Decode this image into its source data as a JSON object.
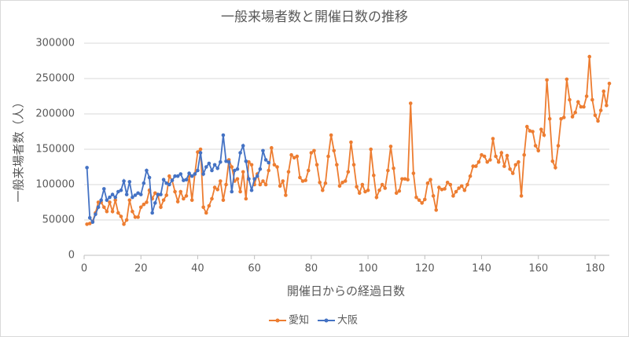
{
  "chart_data": {
    "type": "line",
    "title": "一般来場者数と開催日数の推移",
    "x_label": "開催日からの経過日数",
    "y_label": "一般来場者数（人）",
    "xlim": [
      0,
      185
    ],
    "xticks": [
      0,
      20,
      40,
      60,
      80,
      100,
      120,
      140,
      160,
      180
    ],
    "ylim": [
      0,
      300000
    ],
    "yticks": [
      0,
      50000,
      100000,
      150000,
      200000,
      250000,
      300000
    ],
    "grid": true,
    "legend": "bottom",
    "series": [
      {
        "name": "愛知",
        "color": "#ed7d31",
        "x": [
          1,
          2,
          3,
          4,
          5,
          6,
          7,
          8,
          9,
          10,
          11,
          12,
          13,
          14,
          15,
          16,
          17,
          18,
          19,
          20,
          21,
          22,
          23,
          24,
          25,
          26,
          27,
          28,
          29,
          30,
          31,
          32,
          33,
          34,
          35,
          36,
          37,
          38,
          39,
          40,
          41,
          42,
          43,
          44,
          45,
          46,
          47,
          48,
          49,
          50,
          51,
          52,
          53,
          54,
          55,
          56,
          57,
          58,
          59,
          60,
          61,
          62,
          63,
          64,
          65,
          66,
          67,
          68,
          69,
          70,
          71,
          72,
          73,
          74,
          75,
          76,
          77,
          78,
          79,
          80,
          81,
          82,
          83,
          84,
          85,
          86,
          87,
          88,
          89,
          90,
          91,
          92,
          93,
          94,
          95,
          96,
          97,
          98,
          99,
          100,
          101,
          102,
          103,
          104,
          105,
          106,
          107,
          108,
          109,
          110,
          111,
          112,
          113,
          114,
          115,
          116,
          117,
          118,
          119,
          120,
          121,
          122,
          123,
          124,
          125,
          126,
          127,
          128,
          129,
          130,
          131,
          132,
          133,
          134,
          135,
          136,
          137,
          138,
          139,
          140,
          141,
          142,
          143,
          144,
          145,
          146,
          147,
          148,
          149,
          150,
          151,
          152,
          153,
          154,
          155,
          156,
          157,
          158,
          159,
          160,
          161,
          162,
          163,
          164,
          165,
          166,
          167,
          168,
          169,
          170,
          171,
          172,
          173,
          174,
          175,
          176,
          177,
          178,
          179,
          180,
          181,
          182,
          183,
          184,
          185
        ],
        "values": [
          44000,
          45000,
          48000,
          60000,
          75000,
          75000,
          68000,
          62000,
          75000,
          62000,
          78000,
          60000,
          55000,
          44000,
          50000,
          78000,
          62000,
          54000,
          54000,
          68000,
          72000,
          75000,
          92000,
          80000,
          88000,
          85000,
          68000,
          78000,
          85000,
          112000,
          106000,
          90000,
          76000,
          90000,
          80000,
          84000,
          112000,
          78000,
          115000,
          146000,
          150000,
          68000,
          60000,
          70000,
          80000,
          96000,
          93000,
          105000,
          78000,
          100000,
          135000,
          125000,
          105000,
          108000,
          90000,
          118000,
          80000,
          132000,
          128000,
          100000,
          115000,
          100000,
          105000,
          100000,
          120000,
          152000,
          128000,
          125000,
          98000,
          105000,
          85000,
          118000,
          142000,
          138000,
          140000,
          110000,
          105000,
          106000,
          120000,
          145000,
          148000,
          128000,
          103000,
          92000,
          102000,
          140000,
          170000,
          148000,
          128000,
          98000,
          103000,
          105000,
          118000,
          160000,
          128000,
          97000,
          88000,
          100000,
          90000,
          92000,
          150000,
          113000,
          82000,
          92000,
          100000,
          95000,
          120000,
          154000,
          123000,
          88000,
          91000,
          108000,
          108000,
          107000,
          215000,
          116000,
          82000,
          78000,
          74000,
          79000,
          102000,
          107000,
          84000,
          64000,
          96000,
          93000,
          94000,
          103000,
          100000,
          84000,
          90000,
          95000,
          98000,
          92000,
          100000,
          112000,
          126000,
          126000,
          132000,
          142000,
          140000,
          132000,
          135000,
          165000,
          140000,
          132000,
          145000,
          126000,
          141000,
          122000,
          116000,
          128000,
          132000,
          84000,
          142000,
          182000,
          176000,
          175000,
          155000,
          148000,
          178000,
          170000,
          248000,
          193000,
          133000,
          124000,
          155000,
          193000,
          195000,
          249000,
          220000,
          196000,
          202000,
          217000,
          210000,
          210000,
          225000,
          281000,
          220000,
          198000,
          190000,
          205000,
          232000,
          212000,
          243000
        ]
      },
      {
        "name": "大阪",
        "color": "#4472c4",
        "x": [
          1,
          2,
          3,
          4,
          5,
          6,
          7,
          8,
          9,
          10,
          11,
          12,
          13,
          14,
          15,
          16,
          17,
          18,
          19,
          20,
          21,
          22,
          23,
          24,
          25,
          26,
          27,
          28,
          29,
          30,
          31,
          32,
          33,
          34,
          35,
          36,
          37,
          38,
          39,
          40,
          41,
          42,
          43,
          44,
          45,
          46,
          47,
          48,
          49,
          50,
          51,
          52,
          53,
          54,
          55,
          56,
          57,
          58,
          59,
          60,
          61,
          62,
          63,
          64,
          65
        ],
        "values": [
          124000,
          53000,
          47000,
          58000,
          68000,
          78000,
          94000,
          78000,
          82000,
          86000,
          82000,
          90000,
          92000,
          105000,
          86000,
          104000,
          82000,
          85000,
          88000,
          86000,
          102000,
          120000,
          110000,
          60000,
          74000,
          86000,
          86000,
          107000,
          102000,
          100000,
          106000,
          112000,
          112000,
          115000,
          106000,
          107000,
          116000,
          112000,
          115000,
          120000,
          145000,
          115000,
          125000,
          130000,
          120000,
          128000,
          123000,
          132000,
          170000,
          133000,
          132000,
          90000,
          120000,
          122000,
          145000,
          155000,
          133000,
          108000,
          92000,
          108000,
          112000,
          122000,
          148000,
          135000,
          131000
        ]
      }
    ]
  }
}
